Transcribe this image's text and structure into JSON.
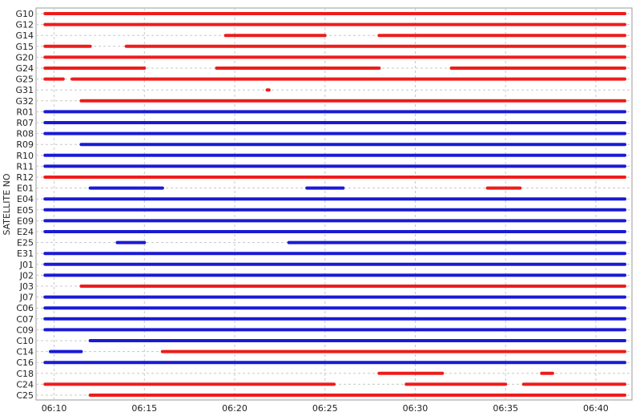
{
  "chart_data": {
    "type": "scatter",
    "ylabel": "SATELLITE NO",
    "xlabel": "",
    "x_tick_labels": [
      "06:10",
      "06:15",
      "06:20",
      "06:25",
      "06:30",
      "06:35",
      "06:40"
    ],
    "x_tick_minutes": [
      10,
      15,
      20,
      25,
      30,
      35,
      40
    ],
    "xlim": [
      "06:09",
      "06:42"
    ],
    "xlim_minutes": [
      9.0,
      42.0
    ],
    "grid": true,
    "colors": {
      "red": "#ee1c1c",
      "blue": "#1a1ad6"
    },
    "satellites": [
      {
        "id": "G10",
        "segments": [
          [
            9.5,
            41.6,
            "red"
          ]
        ]
      },
      {
        "id": "G12",
        "segments": [
          [
            9.5,
            41.6,
            "red"
          ]
        ]
      },
      {
        "id": "G14",
        "segments": [
          [
            19.5,
            25,
            "red"
          ],
          [
            28,
            41.6,
            "red"
          ]
        ]
      },
      {
        "id": "G15",
        "segments": [
          [
            9.5,
            12,
            "red"
          ],
          [
            14,
            41.6,
            "red"
          ]
        ]
      },
      {
        "id": "G20",
        "segments": [
          [
            9.5,
            41.6,
            "red"
          ]
        ]
      },
      {
        "id": "G24",
        "segments": [
          [
            9.5,
            15,
            "red"
          ],
          [
            19,
            28,
            "red"
          ],
          [
            32,
            41.6,
            "red"
          ]
        ]
      },
      {
        "id": "G25",
        "segments": [
          [
            9.5,
            10.5,
            "red"
          ],
          [
            11,
            41.6,
            "red"
          ]
        ]
      },
      {
        "id": "G31",
        "segments": [
          [
            21.8,
            21.9,
            "red"
          ]
        ]
      },
      {
        "id": "G32",
        "segments": [
          [
            11.5,
            41.6,
            "red"
          ]
        ]
      },
      {
        "id": "R01",
        "segments": [
          [
            9.5,
            41.6,
            "blue"
          ]
        ]
      },
      {
        "id": "R07",
        "segments": [
          [
            9.5,
            41.6,
            "blue"
          ]
        ]
      },
      {
        "id": "R08",
        "segments": [
          [
            9.5,
            41.6,
            "blue"
          ]
        ]
      },
      {
        "id": "R09",
        "segments": [
          [
            11.5,
            41.6,
            "blue"
          ]
        ]
      },
      {
        "id": "R10",
        "segments": [
          [
            9.5,
            41.6,
            "blue"
          ]
        ]
      },
      {
        "id": "R11",
        "segments": [
          [
            9.5,
            41.6,
            "blue"
          ]
        ]
      },
      {
        "id": "R12",
        "segments": [
          [
            9.5,
            41.6,
            "red"
          ]
        ]
      },
      {
        "id": "E01",
        "segments": [
          [
            12,
            16,
            "blue"
          ],
          [
            24,
            26,
            "blue"
          ],
          [
            34,
            35.8,
            "red"
          ]
        ]
      },
      {
        "id": "E04",
        "segments": [
          [
            9.5,
            41.6,
            "blue"
          ]
        ]
      },
      {
        "id": "E05",
        "segments": [
          [
            9.5,
            41.6,
            "blue"
          ]
        ]
      },
      {
        "id": "E09",
        "segments": [
          [
            9.5,
            41.6,
            "blue"
          ]
        ]
      },
      {
        "id": "E24",
        "segments": [
          [
            9.5,
            41.6,
            "blue"
          ]
        ]
      },
      {
        "id": "E25",
        "segments": [
          [
            13.5,
            15,
            "blue"
          ],
          [
            23,
            41.6,
            "blue"
          ]
        ]
      },
      {
        "id": "E31",
        "segments": [
          [
            9.5,
            41.6,
            "blue"
          ]
        ]
      },
      {
        "id": "J01",
        "segments": [
          [
            9.5,
            41.6,
            "blue"
          ]
        ]
      },
      {
        "id": "J02",
        "segments": [
          [
            9.5,
            41.6,
            "blue"
          ]
        ]
      },
      {
        "id": "J03",
        "segments": [
          [
            11.5,
            41.6,
            "red"
          ]
        ]
      },
      {
        "id": "J07",
        "segments": [
          [
            9.5,
            41.6,
            "blue"
          ]
        ]
      },
      {
        "id": "C06",
        "segments": [
          [
            9.5,
            41.6,
            "blue"
          ]
        ]
      },
      {
        "id": "C07",
        "segments": [
          [
            9.5,
            41.6,
            "blue"
          ]
        ]
      },
      {
        "id": "C09",
        "segments": [
          [
            9.5,
            41.6,
            "blue"
          ]
        ]
      },
      {
        "id": "C10",
        "segments": [
          [
            12,
            41.6,
            "blue"
          ]
        ]
      },
      {
        "id": "C14",
        "segments": [
          [
            9.8,
            11.5,
            "blue"
          ],
          [
            16,
            41.6,
            "red"
          ]
        ]
      },
      {
        "id": "C16",
        "segments": [
          [
            9.5,
            41.6,
            "blue"
          ]
        ]
      },
      {
        "id": "C18",
        "segments": [
          [
            28,
            31.5,
            "red"
          ],
          [
            37,
            37.6,
            "red"
          ]
        ]
      },
      {
        "id": "C24",
        "segments": [
          [
            9.5,
            25.5,
            "red"
          ],
          [
            29.5,
            35,
            "red"
          ],
          [
            36,
            41.6,
            "red"
          ]
        ]
      },
      {
        "id": "C25",
        "segments": [
          [
            12,
            41.6,
            "red"
          ]
        ]
      }
    ]
  }
}
